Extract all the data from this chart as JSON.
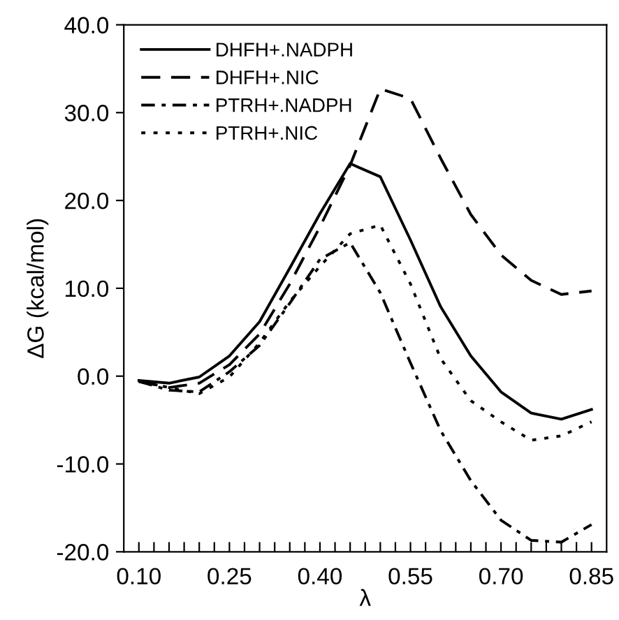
{
  "chart_data": {
    "type": "line",
    "xlabel": "λ",
    "ylabel": "ΔG (kcal/mol)",
    "x": [
      0.1,
      0.15,
      0.2,
      0.25,
      0.3,
      0.35,
      0.4,
      0.45,
      0.5,
      0.55,
      0.6,
      0.65,
      0.7,
      0.75,
      0.8,
      0.85
    ],
    "series": [
      {
        "name": "DHFH+.NADPH",
        "color": "#000000",
        "line_style": "solid",
        "values": [
          -0.5,
          -0.8,
          -0.1,
          2.3,
          6.2,
          12.3,
          18.5,
          24.2,
          22.7,
          15.5,
          7.9,
          2.3,
          -1.8,
          -4.2,
          -4.9,
          -3.8
        ]
      },
      {
        "name": "DHFH+.NIC",
        "color": "#000000",
        "line_style": "dashed",
        "values": [
          -0.6,
          -1.3,
          -0.8,
          1.3,
          4.8,
          10.5,
          17.0,
          24.0,
          32.7,
          31.6,
          24.8,
          18.4,
          13.8,
          10.9,
          9.3,
          9.7
        ]
      },
      {
        "name": "PTRH+.NADPH",
        "color": "#000000",
        "line_style": "dashdot",
        "values": [
          -0.6,
          -1.6,
          -1.8,
          0.5,
          3.5,
          8.3,
          13.3,
          15.2,
          9.5,
          1.5,
          -6.2,
          -11.9,
          -16.4,
          -18.7,
          -18.9,
          -16.9
        ]
      },
      {
        "name": "PTRH+.NIC",
        "color": "#000000",
        "line_style": "dotted",
        "values": [
          -0.6,
          -1.3,
          -2.0,
          -0.1,
          3.8,
          8.5,
          12.5,
          16.2,
          17.2,
          10.5,
          2.0,
          -2.8,
          -5.2,
          -7.3,
          -6.8,
          -5.2
        ]
      }
    ],
    "xlim": [
      0.075,
      0.875
    ],
    "xticks": [
      {
        "value": 0.1,
        "label": "0.10"
      },
      {
        "value": 0.125,
        "label": null
      },
      {
        "value": 0.15,
        "label": null
      },
      {
        "value": 0.175,
        "label": null
      },
      {
        "value": 0.2,
        "label": null
      },
      {
        "value": 0.225,
        "label": null
      },
      {
        "value": 0.25,
        "label": "0.25"
      },
      {
        "value": 0.275,
        "label": null
      },
      {
        "value": 0.3,
        "label": null
      },
      {
        "value": 0.325,
        "label": null
      },
      {
        "value": 0.35,
        "label": null
      },
      {
        "value": 0.375,
        "label": null
      },
      {
        "value": 0.4,
        "label": "0.40"
      },
      {
        "value": 0.425,
        "label": null
      },
      {
        "value": 0.45,
        "label": null
      },
      {
        "value": 0.475,
        "label": null
      },
      {
        "value": 0.5,
        "label": null
      },
      {
        "value": 0.525,
        "label": null
      },
      {
        "value": 0.55,
        "label": "0.55"
      },
      {
        "value": 0.575,
        "label": null
      },
      {
        "value": 0.6,
        "label": null
      },
      {
        "value": 0.625,
        "label": null
      },
      {
        "value": 0.65,
        "label": null
      },
      {
        "value": 0.675,
        "label": null
      },
      {
        "value": 0.7,
        "label": "0.70"
      },
      {
        "value": 0.725,
        "label": null
      },
      {
        "value": 0.75,
        "label": null
      },
      {
        "value": 0.775,
        "label": null
      },
      {
        "value": 0.8,
        "label": null
      },
      {
        "value": 0.825,
        "label": null
      },
      0.85
    ],
    "ylim": [
      -20,
      40
    ],
    "yticks": [
      {
        "value": -20,
        "label": "-20.0"
      },
      {
        "value": -10,
        "label": "-10.0"
      },
      {
        "value": 0,
        "label": "0.0"
      },
      {
        "value": 10,
        "label": "10.0"
      },
      {
        "value": 20,
        "label": "20.0"
      },
      {
        "value": 30,
        "label": "30.0"
      },
      {
        "value": 40,
        "label": "40.0"
      }
    ],
    "grid": false,
    "legend": "top left",
    "marker": "none"
  }
}
